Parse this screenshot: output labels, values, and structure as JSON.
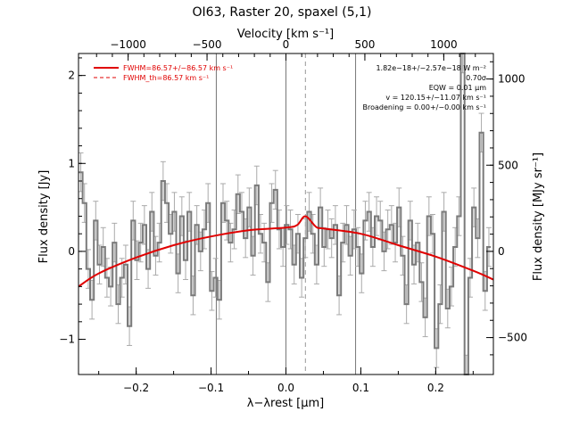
{
  "chart_data": {
    "type": "line",
    "title": "OI63, Raster 20, spaxel (5,1)",
    "xlabel": "λ−λrest [µm]",
    "ylabel_left": "Flux density [Jy]",
    "ylabel_right": "Flux density [MJy sr⁻¹]",
    "xlabel_top": "Velocity [km s⁻¹]",
    "xlim": [
      -0.277,
      0.277
    ],
    "ylim": [
      -1.4,
      2.25
    ],
    "x_ticks": [
      -0.2,
      -0.1,
      0.0,
      0.1,
      0.2
    ],
    "x_tick_labels": [
      "−0.2",
      "−0.1",
      "0.0",
      "0.1",
      "0.2"
    ],
    "y_ticks": [
      -1,
      0,
      1,
      2
    ],
    "y_tick_labels": [
      "−1",
      "0",
      "1",
      "2"
    ],
    "top_ticks_velocity": [
      -1000,
      -500,
      0,
      500,
      1000
    ],
    "top_tick_labels": [
      "−1000",
      "−500",
      "0",
      "500",
      "1000"
    ],
    "right_ticks_mjy": [
      -500,
      0,
      500,
      1000
    ],
    "right_tick_labels": [
      "−500",
      "0",
      "500",
      "1000"
    ],
    "vertical_lines": [
      -0.093,
      0.0,
      0.093
    ],
    "dashed_line_x": 0.026,
    "legend": {
      "position": "top-left",
      "fit_label": "FWHM=86.57+/−86.57 km s⁻¹",
      "theory_label": "FWHM_th=86.57 km s⁻¹"
    },
    "annotations": [
      "1.82e−18+/−2.57e−18 W m⁻²",
      "0.70σ",
      "EQW = 0.01 µm",
      "v = 120.15+/−11.07 km s⁻¹",
      "Broadening = 0.00+/−0.00 km s⁻¹"
    ],
    "fit": {
      "x": [
        -0.277,
        -0.25,
        -0.2,
        -0.15,
        -0.1,
        -0.05,
        0.0,
        0.015,
        0.026,
        0.04,
        0.05,
        0.1,
        0.15,
        0.2,
        0.25,
        0.277
      ],
      "y": [
        -0.4,
        -0.25,
        -0.07,
        0.07,
        0.17,
        0.24,
        0.27,
        0.3,
        0.4,
        0.28,
        0.26,
        0.2,
        0.07,
        -0.06,
        -0.22,
        -0.32
      ]
    },
    "series": [
      {
        "x": [
          -0.274,
          -0.269,
          -0.264,
          -0.259,
          -0.254,
          -0.249,
          -0.244,
          -0.239,
          -0.234,
          -0.229,
          -0.224,
          -0.219,
          -0.214,
          -0.209,
          -0.204,
          -0.199,
          -0.194,
          -0.189,
          -0.184,
          -0.179,
          -0.174,
          -0.169,
          -0.164,
          -0.159,
          -0.154,
          -0.149,
          -0.144,
          -0.139,
          -0.134,
          -0.129,
          -0.124,
          -0.119,
          -0.114,
          -0.109,
          -0.104,
          -0.099,
          -0.094,
          -0.089,
          -0.084,
          -0.079,
          -0.074,
          -0.069,
          -0.064,
          -0.059,
          -0.054,
          -0.049,
          -0.044,
          -0.039,
          -0.034,
          -0.029,
          -0.024,
          -0.019,
          -0.014,
          -0.009,
          -0.004,
          0.001,
          0.006,
          0.011,
          0.016,
          0.021,
          0.026,
          0.031,
          0.036,
          0.041,
          0.046,
          0.051,
          0.056,
          0.061,
          0.066,
          0.071,
          0.076,
          0.081,
          0.086,
          0.091,
          0.096,
          0.101,
          0.106,
          0.111,
          0.116,
          0.121,
          0.126,
          0.131,
          0.136,
          0.141,
          0.146,
          0.151,
          0.156,
          0.161,
          0.166,
          0.171,
          0.176,
          0.181,
          0.186,
          0.191,
          0.196,
          0.201,
          0.206,
          0.211,
          0.216,
          0.221,
          0.226,
          0.231,
          0.236,
          0.241,
          0.246,
          0.251,
          0.256,
          0.261,
          0.266,
          0.271
        ],
        "y": [
          0.9,
          0.55,
          -0.2,
          -0.55,
          0.35,
          -0.15,
          0.05,
          -0.3,
          -0.4,
          0.1,
          -0.6,
          -0.3,
          -0.15,
          -0.85,
          0.35,
          -0.1,
          0.1,
          0.3,
          -0.2,
          0.45,
          -0.05,
          0.1,
          0.8,
          0.55,
          0.2,
          0.45,
          -0.25,
          0.4,
          -0.1,
          0.45,
          -0.5,
          0.3,
          0.0,
          0.25,
          0.55,
          -0.45,
          -0.3,
          -0.55,
          0.55,
          0.35,
          0.1,
          0.25,
          0.65,
          0.45,
          0.15,
          0.5,
          -0.05,
          0.75,
          0.2,
          0.1,
          -0.35,
          0.55,
          0.7,
          0.25,
          0.05,
          0.3,
          0.25,
          -0.15,
          0.2,
          -0.3,
          0.15,
          0.45,
          0.2,
          -0.15,
          0.5,
          0.05,
          0.25,
          0.15,
          0.3,
          -0.5,
          0.1,
          0.3,
          -0.05,
          0.25,
          0.05,
          -0.25,
          0.35,
          0.45,
          0.05,
          0.4,
          0.35,
          0.0,
          0.25,
          0.3,
          0.1,
          0.5,
          -0.05,
          -0.6,
          0.35,
          -0.15,
          0.1,
          -0.35,
          -0.75,
          0.4,
          0.2,
          -1.1,
          -0.6,
          0.45,
          -0.65,
          -0.4,
          0.05,
          0.4,
          2.25,
          -1.4,
          -0.3,
          0.5,
          0.15,
          1.35,
          -0.45,
          0.05
        ],
        "err": 0.22
      }
    ]
  }
}
